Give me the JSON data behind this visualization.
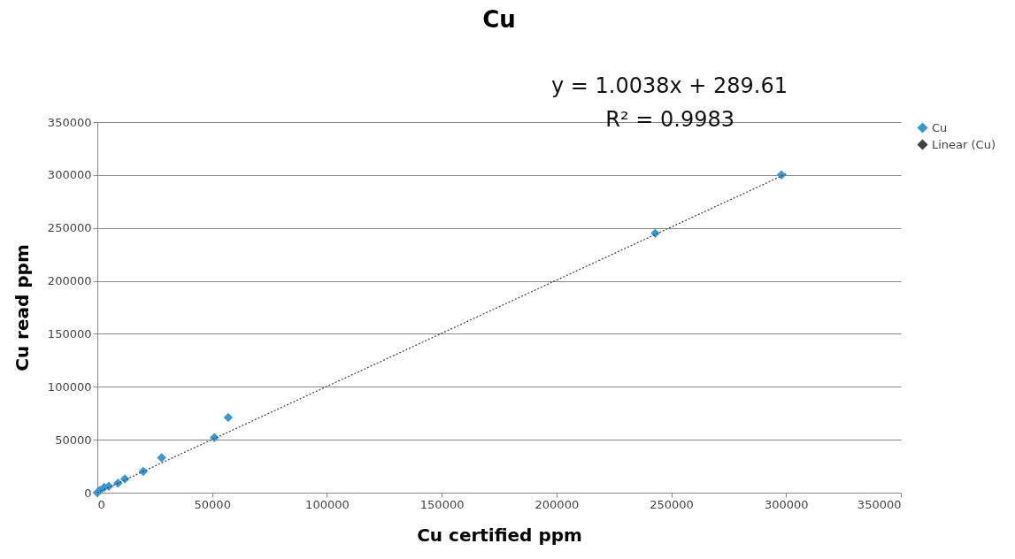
{
  "chart_data": {
    "type": "scatter",
    "title": "Cu",
    "xlabel": "Cu certified ppm",
    "ylabel": "Cu read ppm",
    "annotations": [
      "y = 1.0038x + 289.61",
      "R² = 0.9983"
    ],
    "series": [
      {
        "name": "Cu",
        "color": "#3a98d0",
        "marker": "diamond",
        "x": [
          0,
          1000,
          3000,
          5000,
          9000,
          12000,
          20000,
          28000,
          51000,
          57000,
          243000,
          298000
        ],
        "values": [
          0,
          2000,
          5000,
          6000,
          9000,
          13000,
          20000,
          33000,
          52000,
          71000,
          245000,
          300000
        ]
      },
      {
        "name": "Linear (Cu)",
        "type": "line",
        "color": "#404040",
        "line_style": "dotted",
        "x": [
          0,
          300000
        ],
        "values": [
          0,
          301000
        ]
      }
    ],
    "xlim": [
      0,
      350000
    ],
    "xticks": [
      0,
      50000,
      100000,
      150000,
      200000,
      250000,
      300000,
      350000
    ],
    "ylim": [
      0,
      350000
    ],
    "yticks": [
      0,
      50000,
      100000,
      150000,
      200000,
      250000,
      300000,
      350000
    ],
    "grid": "y",
    "legend": "right"
  }
}
